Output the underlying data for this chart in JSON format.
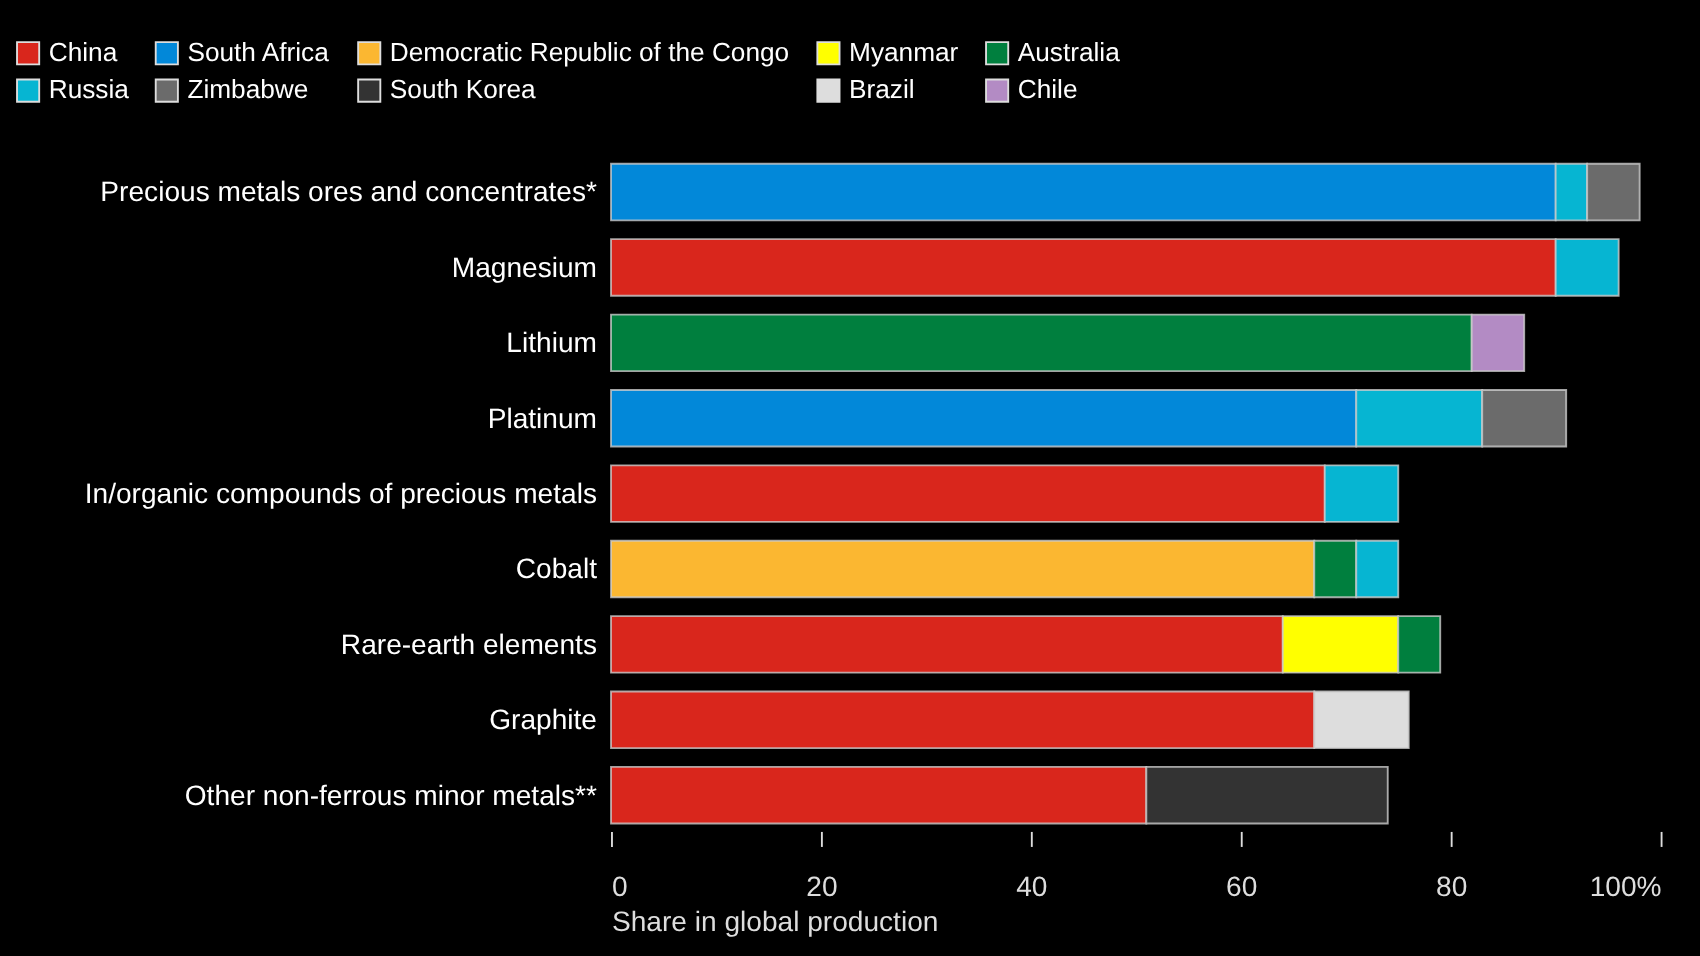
{
  "chart_data": {
    "type": "bar",
    "orientation": "horizontal",
    "stacked": true,
    "xlabel": "Share in global production",
    "categories": [
      "Precious metals ores and concentrates*",
      "Magnesium",
      "Lithium",
      "Platinum",
      "In/organic compounds of precious metals",
      "Cobalt",
      "Rare-earth elements",
      "Graphite",
      "Other non-ferrous minor metals**"
    ],
    "series": [
      {
        "name": "China",
        "color": "#d9261c",
        "values": [
          null,
          90,
          null,
          null,
          68,
          null,
          64,
          67,
          51
        ]
      },
      {
        "name": "South Africa",
        "color": "#0288d9",
        "values": [
          90,
          null,
          null,
          71,
          null,
          null,
          null,
          null,
          null
        ]
      },
      {
        "name": "Democratic Republic of the Congo",
        "color": "#fbb731",
        "values": [
          null,
          null,
          null,
          null,
          null,
          67,
          null,
          null,
          null
        ]
      },
      {
        "name": "Myanmar",
        "color": "#ffff00",
        "values": [
          null,
          null,
          null,
          null,
          null,
          null,
          11,
          null,
          null
        ]
      },
      {
        "name": "Australia",
        "color": "#007f3e",
        "values": [
          null,
          null,
          82,
          null,
          null,
          4,
          4,
          null,
          null
        ]
      },
      {
        "name": "Russia",
        "color": "#06b5d2",
        "values": [
          3,
          6,
          null,
          12,
          7,
          4,
          null,
          null,
          null
        ]
      },
      {
        "name": "Zimbabwe",
        "color": "#6b6b6b",
        "values": [
          5,
          null,
          null,
          8,
          null,
          null,
          null,
          null,
          null
        ]
      },
      {
        "name": "South Korea",
        "color": "#333333",
        "values": [
          null,
          null,
          null,
          null,
          null,
          null,
          null,
          null,
          23
        ]
      },
      {
        "name": "Brazil",
        "color": "#dddddd",
        "values": [
          null,
          null,
          null,
          null,
          null,
          null,
          null,
          9,
          null
        ]
      },
      {
        "name": "Chile",
        "color": "#b38bc4",
        "values": [
          null,
          null,
          5,
          null,
          null,
          null,
          null,
          null,
          null
        ]
      }
    ],
    "xlim": [
      0,
      100
    ],
    "xticks": [
      0,
      20,
      40,
      60,
      80,
      {
        "value": 100,
        "label": "100%"
      }
    ],
    "grid": false,
    "legend": "top"
  }
}
